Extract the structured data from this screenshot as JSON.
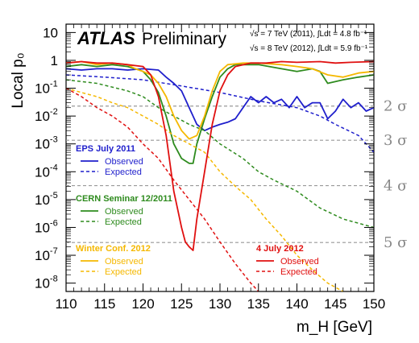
{
  "header": {
    "atlas": "ATLAS",
    "preliminary": "Preliminary",
    "lumi_2011": "√s = 7 TeV (2011), ∫Ldt = 4.8 fb⁻¹",
    "lumi_2012": "√s = 8 TeV (2012), ∫Ldt = 5.9 fb⁻¹"
  },
  "axes": {
    "ylabel": "Local p₀",
    "xlabel": "m_H [GeV]"
  },
  "legend": [
    {
      "title": "EPS July 2011",
      "color": "#1f1fcc",
      "observed": "Observed",
      "expected": "Expected"
    },
    {
      "title": "CERN Seminar 12/2011",
      "color": "#2e8b1e",
      "observed": "Observed",
      "expected": "Expected"
    },
    {
      "title": "Winter Conf. 2012",
      "color": "#f5b800",
      "observed": "Observed",
      "expected": "Expected"
    },
    {
      "title": "4 July 2012",
      "color": "#e01010",
      "observed": "Observed",
      "expected": "Expected"
    }
  ],
  "chart_data": {
    "type": "line",
    "yscale": "log",
    "xlim": [
      110,
      150
    ],
    "ylim_log10": [
      -8.3,
      1.3
    ],
    "x_ticks": [
      "110",
      "115",
      "120",
      "125",
      "130",
      "135",
      "140",
      "145",
      "150"
    ],
    "y_ticks": [
      {
        "base": "10",
        "exp": ""
      },
      {
        "base": "1",
        "exp": ""
      },
      {
        "base": "10",
        "exp": "-1"
      },
      {
        "base": "10",
        "exp": "-2"
      },
      {
        "base": "10",
        "exp": "-3"
      },
      {
        "base": "10",
        "exp": "-4"
      },
      {
        "base": "10",
        "exp": "-5"
      },
      {
        "base": "10",
        "exp": "-6"
      },
      {
        "base": "10",
        "exp": "-7"
      },
      {
        "base": "10",
        "exp": "-8"
      }
    ],
    "sigma_lines": [
      {
        "label": "2 σ",
        "p0": 0.0228
      },
      {
        "label": "3 σ",
        "p0": 0.00135
      },
      {
        "label": "4 σ",
        "p0": 3.17e-05
      },
      {
        "label": "5 σ",
        "p0": 2.87e-07
      }
    ],
    "series": [
      {
        "name": "EPS July 2011 Observed",
        "color": "#1f1fcc",
        "dashed": false,
        "points": [
          [
            110,
            0.5
          ],
          [
            112,
            0.45
          ],
          [
            114,
            0.5
          ],
          [
            116,
            0.5
          ],
          [
            118,
            0.45
          ],
          [
            120,
            0.5
          ],
          [
            122,
            0.45
          ],
          [
            123,
            0.25
          ],
          [
            124,
            0.15
          ],
          [
            125,
            0.08
          ],
          [
            126,
            0.02
          ],
          [
            127,
            0.005
          ],
          [
            128,
            0.003
          ],
          [
            129,
            0.004
          ],
          [
            130,
            0.005
          ],
          [
            131,
            0.006
          ],
          [
            132,
            0.008
          ],
          [
            133,
            0.02
          ],
          [
            134,
            0.05
          ],
          [
            135,
            0.03
          ],
          [
            136,
            0.05
          ],
          [
            137,
            0.03
          ],
          [
            138,
            0.04
          ],
          [
            139,
            0.02
          ],
          [
            140,
            0.05
          ],
          [
            141,
            0.02
          ],
          [
            142,
            0.03
          ],
          [
            143,
            0.03
          ],
          [
            144,
            0.008
          ],
          [
            145,
            0.015
          ],
          [
            146,
            0.04
          ],
          [
            147,
            0.02
          ],
          [
            148,
            0.03
          ],
          [
            149,
            0.015
          ],
          [
            150,
            0.02
          ]
        ]
      },
      {
        "name": "EPS July 2011 Expected",
        "color": "#1f1fcc",
        "dashed": true,
        "points": [
          [
            110,
            0.3
          ],
          [
            115,
            0.25
          ],
          [
            120,
            0.2
          ],
          [
            125,
            0.12
          ],
          [
            130,
            0.07
          ],
          [
            135,
            0.035
          ],
          [
            140,
            0.02
          ],
          [
            143,
            0.01
          ],
          [
            145,
            0.005
          ],
          [
            148,
            0.002
          ],
          [
            150,
            0.0005
          ]
        ]
      },
      {
        "name": "CERN Seminar 12/2011 Observed",
        "color": "#2e8b1e",
        "dashed": false,
        "points": [
          [
            110,
            0.6
          ],
          [
            112,
            0.7
          ],
          [
            114,
            0.6
          ],
          [
            116,
            0.7
          ],
          [
            118,
            0.6
          ],
          [
            119,
            0.5
          ],
          [
            120,
            0.4
          ],
          [
            121,
            0.2
          ],
          [
            122,
            0.07
          ],
          [
            123,
            0.01
          ],
          [
            124,
            0.001
          ],
          [
            125,
            0.0003
          ],
          [
            126,
            0.0002
          ],
          [
            126.5,
            0.0002
          ],
          [
            127,
            0.001
          ],
          [
            128,
            0.008
          ],
          [
            129,
            0.05
          ],
          [
            130,
            0.25
          ],
          [
            131,
            0.5
          ],
          [
            132,
            0.7
          ],
          [
            135,
            0.7
          ],
          [
            138,
            0.5
          ],
          [
            140,
            0.4
          ],
          [
            142,
            0.5
          ],
          [
            143,
            0.4
          ],
          [
            144,
            0.15
          ],
          [
            146,
            0.2
          ],
          [
            148,
            0.25
          ],
          [
            150,
            0.3
          ]
        ]
      },
      {
        "name": "CERN Seminar 12/2011 Expected",
        "color": "#2e8b1e",
        "dashed": true,
        "points": [
          [
            110,
            0.2
          ],
          [
            114,
            0.15
          ],
          [
            118,
            0.08
          ],
          [
            120,
            0.05
          ],
          [
            122,
            0.02
          ],
          [
            124,
            0.01
          ],
          [
            126,
            0.005
          ],
          [
            128,
            0.003
          ],
          [
            130,
            0.001
          ],
          [
            133,
            0.0003
          ],
          [
            135,
            0.0001
          ],
          [
            137,
            5e-05
          ],
          [
            140,
            2e-05
          ],
          [
            143,
            5e-06
          ],
          [
            146,
            2e-06
          ],
          [
            150,
            1e-06
          ]
        ]
      },
      {
        "name": "Winter Conf. 2012 Observed",
        "color": "#f5b800",
        "dashed": false,
        "points": [
          [
            110,
            0.8
          ],
          [
            112,
            0.9
          ],
          [
            114,
            0.7
          ],
          [
            116,
            0.8
          ],
          [
            118,
            0.7
          ],
          [
            119,
            0.5
          ],
          [
            120,
            0.4
          ],
          [
            121,
            0.3
          ],
          [
            122,
            0.15
          ],
          [
            123,
            0.05
          ],
          [
            124,
            0.01
          ],
          [
            125,
            0.003
          ],
          [
            126,
            0.0015
          ],
          [
            127,
            0.002
          ],
          [
            128,
            0.01
          ],
          [
            129,
            0.08
          ],
          [
            130,
            0.4
          ],
          [
            131,
            0.7
          ],
          [
            133,
            0.8
          ],
          [
            135,
            0.8
          ],
          [
            138,
            0.7
          ],
          [
            140,
            0.6
          ],
          [
            142,
            0.5
          ],
          [
            144,
            0.3
          ],
          [
            146,
            0.25
          ],
          [
            148,
            0.35
          ],
          [
            150,
            0.4
          ]
        ]
      },
      {
        "name": "Winter Conf. 2012 Expected",
        "color": "#f5b800",
        "dashed": true,
        "points": [
          [
            110,
            0.1
          ],
          [
            112,
            0.07
          ],
          [
            114,
            0.05
          ],
          [
            116,
            0.03
          ],
          [
            118,
            0.02
          ],
          [
            120,
            0.01
          ],
          [
            122,
            0.005
          ],
          [
            124,
            0.002
          ],
          [
            126,
            0.001
          ],
          [
            128,
            0.0005
          ],
          [
            130,
            0.0001
          ],
          [
            132,
            3e-05
          ],
          [
            134,
            1e-05
          ],
          [
            136,
            2e-06
          ],
          [
            138,
            5e-07
          ],
          [
            140,
            1e-07
          ],
          [
            142,
            3e-08
          ],
          [
            144,
            1e-08
          ],
          [
            146,
            5e-09
          ]
        ]
      },
      {
        "name": "4 July 2012 Observed",
        "color": "#e01010",
        "dashed": false,
        "points": [
          [
            110,
            0.8
          ],
          [
            112,
            0.9
          ],
          [
            114,
            0.8
          ],
          [
            116,
            0.8
          ],
          [
            118,
            0.7
          ],
          [
            120,
            0.6
          ],
          [
            121,
            0.3
          ],
          [
            122,
            0.05
          ],
          [
            123,
            0.002
          ],
          [
            124,
            2e-05
          ],
          [
            125,
            1e-06
          ],
          [
            125.5,
            3e-07
          ],
          [
            126,
            2e-07
          ],
          [
            126.5,
            1.5e-07
          ],
          [
            127,
            2e-06
          ],
          [
            128,
            0.0001
          ],
          [
            129,
            0.005
          ],
          [
            130,
            0.08
          ],
          [
            131,
            0.3
          ],
          [
            132,
            0.6
          ],
          [
            134,
            0.8
          ],
          [
            136,
            0.8
          ],
          [
            138,
            0.9
          ],
          [
            140,
            0.85
          ],
          [
            143,
            0.9
          ],
          [
            145,
            0.8
          ],
          [
            147,
            0.85
          ],
          [
            150,
            0.9
          ]
        ]
      },
      {
        "name": "4 July 2012 Expected",
        "color": "#e01010",
        "dashed": true,
        "points": [
          [
            110,
            0.1
          ],
          [
            112,
            0.05
          ],
          [
            114,
            0.02
          ],
          [
            116,
            0.01
          ],
          [
            118,
            0.004
          ],
          [
            120,
            0.001
          ],
          [
            122,
            0.0003
          ],
          [
            124,
            5e-05
          ],
          [
            126,
            1e-05
          ],
          [
            128,
            2e-06
          ],
          [
            130,
            3e-07
          ],
          [
            132,
            5e-08
          ],
          [
            134,
            1e-08
          ],
          [
            135,
            5e-09
          ]
        ]
      }
    ]
  }
}
